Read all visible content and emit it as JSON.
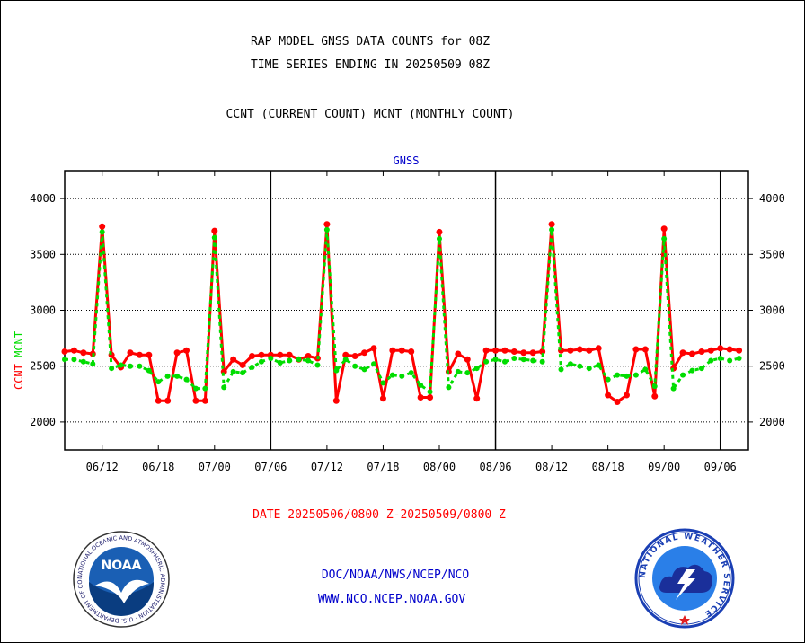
{
  "header": {
    "title_line1": "RAP MODEL GNSS DATA COUNTS for 08Z",
    "title_line2": "TIME SERIES ENDING IN 20250509 08Z",
    "subtitle": "CCNT (CURRENT COUNT) MCNT (MONTHLY COUNT)"
  },
  "footer": {
    "date_range": "DATE 20250506/0800 Z-20250509/0800 Z",
    "org_line": "DOC/NOAA/NWS/NCEP/NCO",
    "url_line": "WWW.NCO.NCEP.NOAA.GOV"
  },
  "logos": {
    "noaa_text": "NOAA",
    "noaa_ring_text": "NATIONAL OCEANIC AND ATMOSPHERIC ADMINISTRATION · U.S. DEPARTMENT OF COMMERCE",
    "nws_ring_text": "NATIONAL WEATHER SERVICE"
  },
  "colors": {
    "ccnt": "#ff0000",
    "mcnt": "#00dd00",
    "title": "#000000",
    "date": "#ff0000",
    "footer_text": "#0000cc",
    "panel_label": "#0000cc"
  },
  "chart_data": {
    "type": "line",
    "title": "GNSS",
    "ylabel_parts": [
      "CCNT",
      "MCNT"
    ],
    "ylim": [
      1750,
      4250
    ],
    "yticks": [
      2000,
      2500,
      3000,
      3500,
      4000
    ],
    "ytick_labels": [
      "2000",
      "2500",
      "3000",
      "3500",
      "4000"
    ],
    "grid": "horizontal dotted",
    "xlim": [
      0,
      73
    ],
    "xticks": [
      {
        "x": 4,
        "label": "06/12"
      },
      {
        "x": 10,
        "label": "06/18"
      },
      {
        "x": 16,
        "label": "07/00"
      },
      {
        "x": 22,
        "label": "07/06"
      },
      {
        "x": 28,
        "label": "07/12"
      },
      {
        "x": 34,
        "label": "07/18"
      },
      {
        "x": 40,
        "label": "08/00"
      },
      {
        "x": 46,
        "label": "08/06"
      },
      {
        "x": 52,
        "label": "08/12"
      },
      {
        "x": 58,
        "label": "08/18"
      },
      {
        "x": 64,
        "label": "09/00"
      },
      {
        "x": 70,
        "label": "09/06"
      }
    ],
    "day_dividers": [
      22,
      46,
      70
    ],
    "series": [
      {
        "name": "CCNT",
        "values": [
          2630,
          2640,
          2620,
          2610,
          3750,
          2600,
          2490,
          2620,
          2600,
          2600,
          2190,
          2190,
          2620,
          2640,
          2190,
          2190,
          3710,
          2450,
          2560,
          2510,
          2590,
          2600,
          2600,
          2600,
          2600,
          2560,
          2590,
          2570,
          3770,
          2190,
          2600,
          2590,
          2620,
          2660,
          2210,
          2640,
          2640,
          2630,
          2220,
          2220,
          3700,
          2450,
          2610,
          2560,
          2210,
          2640,
          2640,
          2640,
          2630,
          2620,
          2620,
          2630,
          3770,
          2640,
          2640,
          2650,
          2640,
          2660,
          2240,
          2180,
          2240,
          2650,
          2650,
          2230,
          3730,
          2480,
          2620,
          2610,
          2630,
          2640,
          2660,
          2650,
          2640
        ]
      },
      {
        "name": "MCNT",
        "values": [
          2560,
          2560,
          2540,
          2520,
          3700,
          2480,
          2510,
          2500,
          2500,
          2460,
          2360,
          2410,
          2410,
          2380,
          2300,
          2300,
          3650,
          2310,
          2450,
          2440,
          2490,
          2540,
          2570,
          2530,
          2550,
          2560,
          2550,
          2510,
          3720,
          2460,
          2560,
          2500,
          2470,
          2520,
          2350,
          2420,
          2410,
          2440,
          2330,
          2270,
          3640,
          2310,
          2450,
          2440,
          2480,
          2540,
          2560,
          2540,
          2570,
          2560,
          2550,
          2540,
          3720,
          2470,
          2520,
          2500,
          2480,
          2510,
          2380,
          2420,
          2410,
          2420,
          2470,
          2320,
          3640,
          2300,
          2420,
          2460,
          2480,
          2550,
          2570,
          2550,
          2570
        ]
      }
    ]
  }
}
